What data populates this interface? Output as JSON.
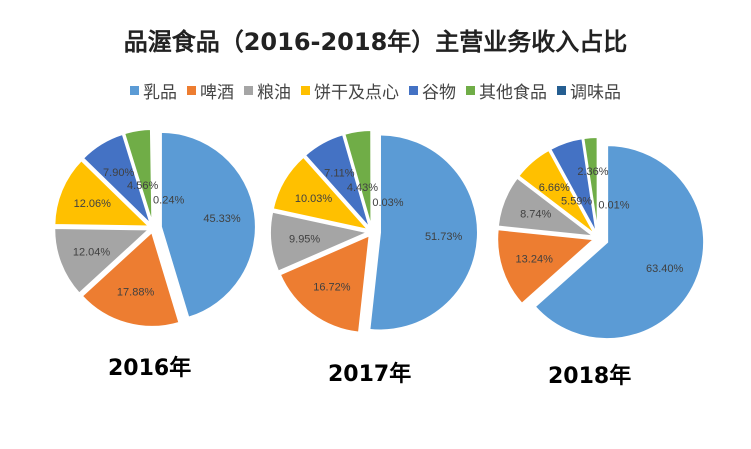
{
  "chart_data": {
    "type": "pie",
    "title": "品渥食品（2016-2018年）主营业务收入占比",
    "categories": [
      "乳品",
      "啤酒",
      "粮油",
      "饼干及点心",
      "谷物",
      "其他食品",
      "调味品"
    ],
    "colors": [
      "#5b9bd5",
      "#ed7d31",
      "#a5a5a5",
      "#ffc000",
      "#4472c4",
      "#70ad47",
      "#255e91"
    ],
    "legend_position": "top",
    "pies": [
      {
        "label": "2016年",
        "values": [
          45.33,
          17.88,
          12.04,
          12.06,
          7.9,
          4.56,
          0.24
        ]
      },
      {
        "label": "2017年",
        "values": [
          51.73,
          16.72,
          9.95,
          10.03,
          7.11,
          4.43,
          0.03
        ]
      },
      {
        "label": "2018年",
        "values": [
          63.4,
          13.24,
          8.74,
          6.66,
          5.59,
          2.36,
          0.01
        ]
      }
    ]
  }
}
